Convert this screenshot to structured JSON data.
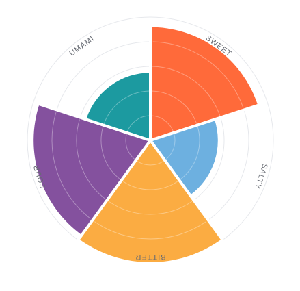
{
  "chart_data": {
    "type": "polar-area",
    "categories": [
      "SWEET",
      "SALTY",
      "BITTER",
      "SOUR",
      "UMAMI"
    ],
    "values": [
      0.93,
      0.56,
      1.0,
      0.96,
      0.56
    ],
    "max": 1.0,
    "grid_rings": 5,
    "grid": true,
    "legend": "none",
    "colors": [
      "#ff6a3a",
      "#6db0e0",
      "#fbac42",
      "#84519e",
      "#1c9aa0"
    ]
  }
}
